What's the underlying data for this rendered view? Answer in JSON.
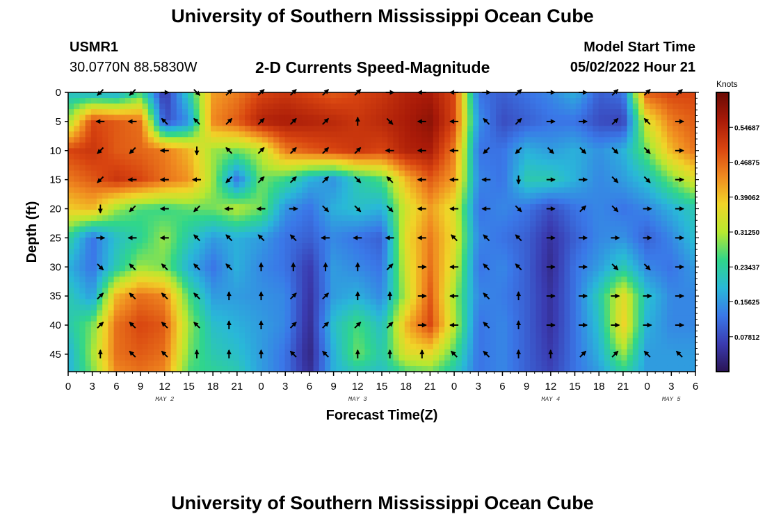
{
  "header": {
    "title": "University of Southern Mississippi Ocean Cube",
    "station": "USMR1",
    "coords": "30.0770N  88.5830W",
    "subtitle": "2-D Currents Speed-Magnitude",
    "model_label": "Model Start Time",
    "model_time": "05/02/2022 Hour 21"
  },
  "footer": {
    "title": "University of Southern Mississippi Ocean Cube"
  },
  "colors": {
    "scale": [
      "#2a1454",
      "#3a3bb0",
      "#3a78e8",
      "#29b8d8",
      "#30d68a",
      "#b8e830",
      "#f0d428",
      "#f08a20",
      "#d84410",
      "#a81a08",
      "#6a0a04"
    ],
    "arrow": "#000000"
  },
  "chart_data": {
    "type": "heatmap",
    "xlabel": "Forecast Time(Z)",
    "ylabel": "Depth (ft)",
    "x_ticks": [
      "0",
      "3",
      "6",
      "9",
      "12",
      "15",
      "18",
      "21",
      "0",
      "3",
      "6",
      "9",
      "12",
      "15",
      "18",
      "21",
      "0",
      "3",
      "6",
      "9",
      "12",
      "15",
      "18",
      "21",
      "0",
      "3",
      "6"
    ],
    "x_range_hours": [
      0,
      78
    ],
    "y_ticks": [
      "0",
      "5",
      "10",
      "15",
      "20",
      "25",
      "30",
      "35",
      "40",
      "45"
    ],
    "y_range_ft": [
      0,
      48
    ],
    "day_labels": [
      {
        "label": "MAY 2",
        "hour": 12
      },
      {
        "label": "MAY 3",
        "hour": 36
      },
      {
        "label": "MAY 4",
        "hour": 60
      },
      {
        "label": "MAY 5",
        "hour": 75
      }
    ],
    "colorbar": {
      "title": "Knots",
      "ticks": [
        "0.54687",
        "0.46875",
        "0.39062",
        "0.31250",
        "0.23437",
        "0.15625",
        "0.07812"
      ],
      "tick_values": [
        0.54687,
        0.46875,
        0.39062,
        0.3125,
        0.23437,
        0.15625,
        0.07812
      ],
      "range": [
        0,
        0.625
      ]
    },
    "speed": {
      "hours": [
        0,
        3,
        6,
        9,
        12,
        15,
        18,
        21,
        24,
        27,
        30,
        33,
        36,
        39,
        42,
        45,
        48,
        51,
        54,
        57,
        60,
        63,
        66,
        69,
        72,
        75,
        78
      ],
      "depths": [
        0,
        5,
        10,
        15,
        20,
        25,
        30,
        35,
        40,
        45,
        48
      ],
      "values": [
        [
          0.2,
          0.18,
          0.17,
          0.25,
          0.05,
          0.22,
          0.42,
          0.45,
          0.5,
          0.52,
          0.5,
          0.48,
          0.5,
          0.52,
          0.55,
          0.56,
          0.5,
          0.12,
          0.1,
          0.12,
          0.14,
          0.18,
          0.1,
          0.12,
          0.48,
          0.5,
          0.5
        ],
        [
          0.3,
          0.5,
          0.48,
          0.46,
          0.08,
          0.15,
          0.44,
          0.48,
          0.55,
          0.56,
          0.55,
          0.54,
          0.52,
          0.54,
          0.56,
          0.59,
          0.5,
          0.15,
          0.08,
          0.1,
          0.12,
          0.12,
          0.08,
          0.07,
          0.35,
          0.45,
          0.48
        ],
        [
          0.5,
          0.52,
          0.48,
          0.47,
          0.45,
          0.4,
          0.3,
          0.28,
          0.32,
          0.45,
          0.48,
          0.5,
          0.52,
          0.5,
          0.55,
          0.56,
          0.45,
          0.12,
          0.12,
          0.18,
          0.16,
          0.18,
          0.15,
          0.18,
          0.28,
          0.4,
          0.46
        ],
        [
          0.45,
          0.48,
          0.52,
          0.5,
          0.46,
          0.43,
          0.3,
          0.12,
          0.28,
          0.25,
          0.18,
          0.15,
          0.22,
          0.26,
          0.4,
          0.48,
          0.42,
          0.14,
          0.12,
          0.22,
          0.22,
          0.18,
          0.14,
          0.16,
          0.2,
          0.28,
          0.35
        ],
        [
          0.38,
          0.4,
          0.3,
          0.26,
          0.25,
          0.27,
          0.28,
          0.32,
          0.28,
          0.15,
          0.12,
          0.18,
          0.2,
          0.18,
          0.34,
          0.42,
          0.35,
          0.12,
          0.14,
          0.12,
          0.08,
          0.12,
          0.14,
          0.12,
          0.14,
          0.18,
          0.22
        ],
        [
          0.24,
          0.12,
          0.2,
          0.24,
          0.3,
          0.22,
          0.16,
          0.18,
          0.16,
          0.12,
          0.1,
          0.14,
          0.12,
          0.1,
          0.36,
          0.45,
          0.36,
          0.14,
          0.12,
          0.1,
          0.05,
          0.1,
          0.14,
          0.15,
          0.1,
          0.14,
          0.2
        ],
        [
          0.18,
          0.12,
          0.22,
          0.3,
          0.28,
          0.18,
          0.12,
          0.18,
          0.14,
          0.12,
          0.06,
          0.16,
          0.14,
          0.12,
          0.34,
          0.46,
          0.34,
          0.12,
          0.14,
          0.1,
          0.04,
          0.12,
          0.16,
          0.22,
          0.14,
          0.12,
          0.16
        ],
        [
          0.22,
          0.16,
          0.4,
          0.46,
          0.44,
          0.26,
          0.16,
          0.16,
          0.15,
          0.14,
          0.05,
          0.16,
          0.18,
          0.14,
          0.32,
          0.48,
          0.3,
          0.14,
          0.13,
          0.1,
          0.05,
          0.12,
          0.22,
          0.36,
          0.2,
          0.14,
          0.14
        ],
        [
          0.22,
          0.28,
          0.46,
          0.5,
          0.48,
          0.3,
          0.2,
          0.18,
          0.16,
          0.14,
          0.04,
          0.2,
          0.26,
          0.2,
          0.4,
          0.5,
          0.32,
          0.12,
          0.14,
          0.1,
          0.05,
          0.12,
          0.2,
          0.38,
          0.18,
          0.14,
          0.14
        ],
        [
          0.18,
          0.3,
          0.46,
          0.48,
          0.46,
          0.28,
          0.22,
          0.2,
          0.16,
          0.12,
          0.03,
          0.18,
          0.28,
          0.22,
          0.35,
          0.36,
          0.26,
          0.12,
          0.14,
          0.1,
          0.06,
          0.12,
          0.18,
          0.3,
          0.16,
          0.16,
          0.16
        ],
        [
          0.18,
          0.28,
          0.44,
          0.46,
          0.44,
          0.26,
          0.24,
          0.22,
          0.16,
          0.12,
          0.04,
          0.18,
          0.22,
          0.2,
          0.26,
          0.28,
          0.22,
          0.12,
          0.14,
          0.1,
          0.07,
          0.12,
          0.16,
          0.24,
          0.16,
          0.16,
          0.16
        ]
      ]
    },
    "vectors": {
      "hours": [
        4,
        8,
        12,
        16,
        20,
        24,
        28,
        32,
        36,
        40,
        44,
        48,
        52,
        56,
        60,
        64,
        68,
        72,
        76
      ],
      "depths": [
        0,
        5,
        10,
        15,
        20,
        25,
        30,
        35,
        40,
        45
      ],
      "angles_deg": [
        [
          225,
          225,
          0,
          315,
          45,
          45,
          45,
          45,
          45,
          0,
          180,
          180,
          0,
          45,
          0,
          0,
          45,
          45,
          45
        ],
        [
          180,
          180,
          135,
          135,
          45,
          45,
          45,
          45,
          90,
          315,
          180,
          180,
          135,
          45,
          0,
          0,
          45,
          135,
          0
        ],
        [
          225,
          225,
          180,
          270,
          135,
          45,
          45,
          45,
          45,
          180,
          180,
          180,
          225,
          225,
          315,
          315,
          315,
          315,
          0
        ],
        [
          225,
          180,
          180,
          180,
          225,
          45,
          45,
          45,
          315,
          135,
          180,
          180,
          180,
          270,
          0,
          0,
          315,
          315,
          0
        ],
        [
          270,
          225,
          180,
          225,
          180,
          180,
          0,
          315,
          315,
          315,
          180,
          180,
          180,
          315,
          0,
          45,
          315,
          0,
          0
        ],
        [
          0,
          180,
          180,
          135,
          135,
          135,
          135,
          180,
          180,
          180,
          180,
          135,
          135,
          135,
          0,
          0,
          0,
          0,
          0
        ],
        [
          315,
          135,
          135,
          135,
          135,
          90,
          90,
          90,
          90,
          45,
          0,
          180,
          135,
          135,
          0,
          0,
          315,
          315,
          0
        ],
        [
          45,
          135,
          135,
          135,
          90,
          90,
          45,
          45,
          90,
          90,
          0,
          180,
          135,
          90,
          0,
          0,
          0,
          0,
          0
        ],
        [
          45,
          135,
          135,
          135,
          90,
          90,
          45,
          45,
          45,
          45,
          0,
          180,
          135,
          90,
          0,
          0,
          0,
          0,
          0
        ],
        [
          90,
          135,
          135,
          90,
          90,
          90,
          135,
          135,
          90,
          90,
          90,
          135,
          135,
          90,
          90,
          45,
          45,
          135,
          135
        ]
      ]
    }
  }
}
